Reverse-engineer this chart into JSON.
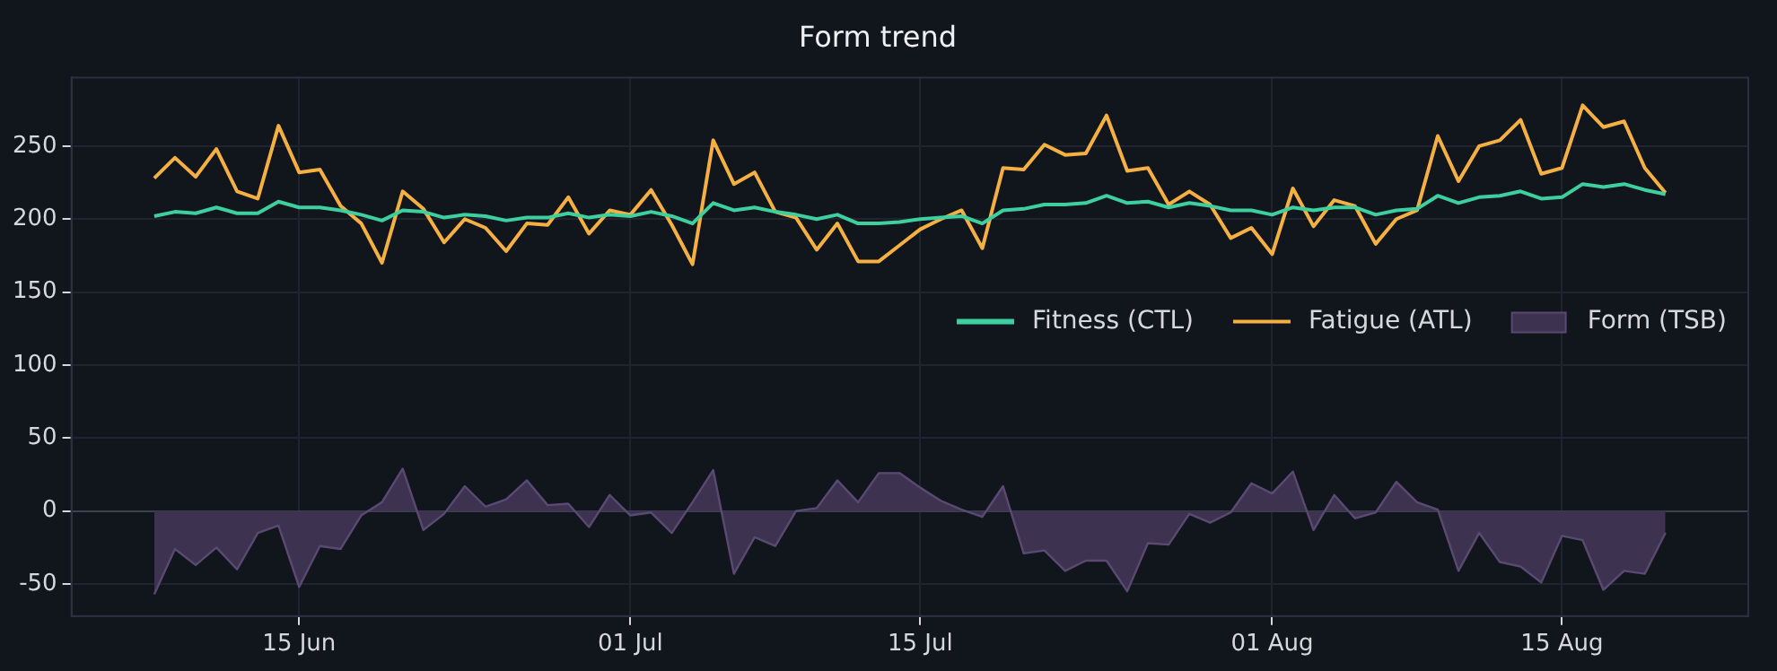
{
  "chart_data": {
    "type": "line",
    "title": "Form trend",
    "x": [
      "--06-08",
      "--06-09",
      "--06-10",
      "--06-11",
      "--06-12",
      "--06-13",
      "--06-14",
      "--06-15",
      "--06-16",
      "--06-17",
      "--06-18",
      "--06-19",
      "--06-20",
      "--06-21",
      "--06-22",
      "--06-23",
      "--06-24",
      "--06-25",
      "--06-26",
      "--06-27",
      "--06-28",
      "--06-29",
      "--06-30",
      "--07-01",
      "--07-02",
      "--07-03",
      "--07-04",
      "--07-05",
      "--07-06",
      "--07-07",
      "--07-08",
      "--07-09",
      "--07-10",
      "--07-11",
      "--07-12",
      "--07-13",
      "--07-14",
      "--07-15",
      "--07-16",
      "--07-17",
      "--07-18",
      "--07-19",
      "--07-20",
      "--07-21",
      "--07-22",
      "--07-23",
      "--07-24",
      "--07-25",
      "--07-26",
      "--07-27",
      "--07-28",
      "--07-29",
      "--07-30",
      "--07-31",
      "--08-01",
      "--08-02",
      "--08-03",
      "--08-04",
      "--08-05",
      "--08-06",
      "--08-07",
      "--08-08",
      "--08-09",
      "--08-10",
      "--08-11",
      "--08-12",
      "--08-13",
      "--08-14",
      "--08-15",
      "--08-16",
      "--08-17",
      "--08-18",
      "--08-19",
      "--08-20"
    ],
    "series": [
      {
        "name": "Fitness (CTL)",
        "color": "#3ecf9e",
        "values": [
          202,
          205,
          204,
          208,
          204,
          204,
          212,
          208,
          208,
          206,
          203,
          199,
          206,
          205,
          201,
          203,
          202,
          199,
          201,
          201,
          204,
          201,
          203,
          202,
          205,
          202,
          197,
          211,
          206,
          208,
          205,
          203,
          200,
          203,
          197,
          197,
          198,
          200,
          201,
          202,
          197,
          206,
          207,
          210,
          210,
          211,
          216,
          211,
          212,
          208,
          211,
          209,
          206,
          206,
          203,
          208,
          206,
          208,
          208,
          203,
          206,
          207,
          216,
          211,
          215,
          216,
          219,
          214,
          215,
          224,
          222,
          224,
          220,
          217
        ]
      },
      {
        "name": "Fatigue (ATL)",
        "color": "#f5b041",
        "values": [
          228,
          242,
          229,
          248,
          219,
          214,
          264,
          232,
          234,
          209,
          197,
          170,
          219,
          207,
          184,
          200,
          194,
          178,
          197,
          196,
          215,
          190,
          206,
          203,
          220,
          196,
          169,
          254,
          224,
          232,
          205,
          201,
          179,
          197,
          171,
          171,
          182,
          193,
          200,
          206,
          180,
          235,
          234,
          251,
          244,
          245,
          271,
          233,
          235,
          210,
          219,
          210,
          187,
          194,
          176,
          221,
          195,
          213,
          209,
          183,
          200,
          206,
          257,
          226,
          250,
          254,
          268,
          231,
          235,
          278,
          263,
          267,
          235,
          218
        ]
      },
      {
        "name": "Form (TSB)",
        "type": "area",
        "color": "#3d3350",
        "values": [
          -57,
          -26,
          -37,
          -25,
          -40,
          -15,
          -10,
          -52,
          -24,
          -26,
          -3,
          6,
          29,
          -13,
          -2,
          17,
          3,
          8,
          21,
          4,
          5,
          -11,
          11,
          -3,
          -1,
          -15,
          6,
          28,
          -43,
          -18,
          -24,
          0,
          2,
          21,
          6,
          26,
          26,
          16,
          7,
          1,
          -4,
          17,
          -29,
          -27,
          -41,
          -34,
          -34,
          -55,
          -22,
          -23,
          -2,
          -8,
          -1,
          19,
          12,
          27,
          -13,
          11,
          -5,
          -1,
          20,
          6,
          1,
          -41,
          -15,
          -35,
          -38,
          -49,
          -17,
          -20,
          -54,
          -41,
          -43,
          -15
        ]
      }
    ],
    "xlim": [
      "--06-04",
      "--08-24"
    ],
    "xticks": [
      {
        "value": "--06-15",
        "label": "15 Jun"
      },
      {
        "value": "--07-01",
        "label": "01 Jul"
      },
      {
        "value": "--07-15",
        "label": "15 Jul"
      },
      {
        "value": "--08-01",
        "label": "01 Aug"
      },
      {
        "value": "--08-15",
        "label": "15 Aug"
      }
    ],
    "ylim": [
      -72,
      297
    ],
    "yticks": [
      -50,
      0,
      50,
      100,
      150,
      200,
      250
    ],
    "grid": true,
    "legend": "right",
    "marker": "none",
    "line_style": "solid"
  }
}
